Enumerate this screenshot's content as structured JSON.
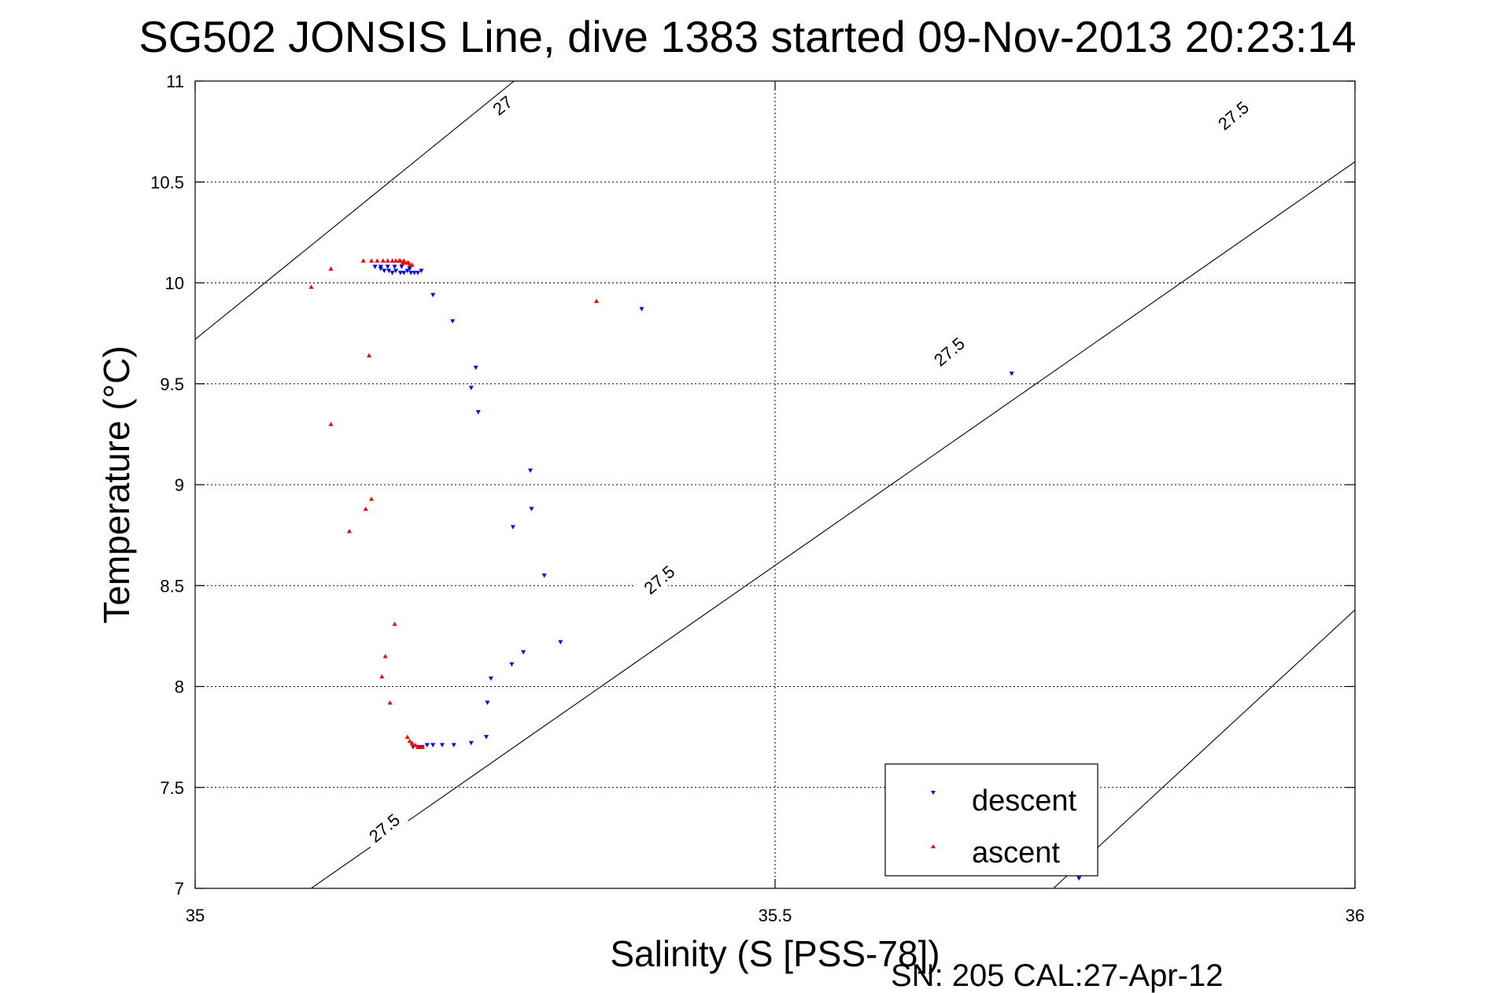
{
  "chart_data": {
    "type": "scatter",
    "title": "SG502 JONSIS Line, dive 1383 started 09-Nov-2013 20:23:14",
    "xlabel": "Salinity (S [PSS-78])",
    "ylabel": "Temperature (°C)",
    "footer": "SN: 205  CAL:27-Apr-12",
    "xlim": [
      35,
      36
    ],
    "ylim": [
      7,
      11
    ],
    "x_ticks": [
      35,
      35.5,
      36
    ],
    "x_tick_labels": [
      "35",
      "35.5",
      "36"
    ],
    "y_ticks": [
      7,
      7.5,
      8,
      8.5,
      9,
      9.5,
      10,
      10.5,
      11
    ],
    "y_tick_labels": [
      "7",
      "7.5",
      "8",
      "8.5",
      "9",
      "9.5",
      "10",
      "10.5",
      "11"
    ],
    "grid": true,
    "legend_position": "bottom-right",
    "density_contours": [
      {
        "level": "27",
        "points": [
          [
            35.0,
            9.72
          ],
          [
            35.275,
            11.0
          ]
        ],
        "labels": [
          {
            "text": "27",
            "x": 35.265,
            "y": 10.88,
            "angle": -38
          }
        ]
      },
      {
        "level": "27.5",
        "points": [
          [
            35.1,
            7.0
          ],
          [
            36.1,
            11.0
          ]
        ],
        "labels": [
          {
            "text": "27.5",
            "x": 35.163,
            "y": 7.3,
            "angle": -40
          },
          {
            "text": "27.5",
            "x": 35.4,
            "y": 8.53,
            "angle": -40
          },
          {
            "text": "27.5",
            "x": 35.65,
            "y": 9.66,
            "angle": -40
          },
          {
            "text": "27.5",
            "x": 35.895,
            "y": 10.83,
            "angle": -40
          }
        ]
      },
      {
        "level": "",
        "points": [
          [
            35.74,
            7.0
          ],
          [
            36.0,
            8.38
          ]
        ],
        "labels": []
      }
    ],
    "series": [
      {
        "name": "descent",
        "color": "#0000ff",
        "marker": "triangle-down",
        "points": [
          [
            35.155,
            10.08
          ],
          [
            35.16,
            10.07
          ],
          [
            35.163,
            10.06
          ],
          [
            35.167,
            10.06
          ],
          [
            35.17,
            10.05
          ],
          [
            35.173,
            10.06
          ],
          [
            35.177,
            10.05
          ],
          [
            35.18,
            10.05
          ],
          [
            35.183,
            10.06
          ],
          [
            35.186,
            10.05
          ],
          [
            35.189,
            10.05
          ],
          [
            35.192,
            10.05
          ],
          [
            35.195,
            10.06
          ],
          [
            35.185,
            10.07
          ],
          [
            35.178,
            10.08
          ],
          [
            35.172,
            10.08
          ],
          [
            35.166,
            10.08
          ],
          [
            35.16,
            10.08
          ],
          [
            35.205,
            9.94
          ],
          [
            35.222,
            9.81
          ],
          [
            35.242,
            9.58
          ],
          [
            35.238,
            9.48
          ],
          [
            35.244,
            9.36
          ],
          [
            35.289,
            9.07
          ],
          [
            35.29,
            8.88
          ],
          [
            35.274,
            8.79
          ],
          [
            35.301,
            8.55
          ],
          [
            35.315,
            8.22
          ],
          [
            35.283,
            8.17
          ],
          [
            35.273,
            8.11
          ],
          [
            35.255,
            8.04
          ],
          [
            35.252,
            7.92
          ],
          [
            35.251,
            7.75
          ],
          [
            35.238,
            7.72
          ],
          [
            35.223,
            7.71
          ],
          [
            35.213,
            7.71
          ],
          [
            35.205,
            7.71
          ],
          [
            35.2,
            7.71
          ],
          [
            35.196,
            7.7
          ],
          [
            35.192,
            7.7
          ],
          [
            35.188,
            7.7
          ],
          [
            35.385,
            9.87
          ],
          [
            35.704,
            9.55
          ],
          [
            35.762,
            7.05
          ]
        ]
      },
      {
        "name": "ascent",
        "color": "#ff0000",
        "marker": "triangle-up",
        "points": [
          [
            35.1,
            9.98
          ],
          [
            35.117,
            10.07
          ],
          [
            35.145,
            10.11
          ],
          [
            35.152,
            10.11
          ],
          [
            35.157,
            10.11
          ],
          [
            35.162,
            10.11
          ],
          [
            35.166,
            10.11
          ],
          [
            35.17,
            10.11
          ],
          [
            35.173,
            10.11
          ],
          [
            35.176,
            10.11
          ],
          [
            35.179,
            10.1
          ],
          [
            35.181,
            10.1
          ],
          [
            35.183,
            10.1
          ],
          [
            35.185,
            10.09
          ],
          [
            35.187,
            10.09
          ],
          [
            35.184,
            10.1
          ],
          [
            35.18,
            10.11
          ],
          [
            35.177,
            10.11
          ],
          [
            35.346,
            9.91
          ],
          [
            35.15,
            9.64
          ],
          [
            35.117,
            9.3
          ],
          [
            35.152,
            8.93
          ],
          [
            35.147,
            8.88
          ],
          [
            35.133,
            8.77
          ],
          [
            35.172,
            8.31
          ],
          [
            35.164,
            8.15
          ],
          [
            35.161,
            8.05
          ],
          [
            35.168,
            7.92
          ],
          [
            35.183,
            7.75
          ],
          [
            35.185,
            7.73
          ],
          [
            35.187,
            7.72
          ],
          [
            35.188,
            7.71
          ],
          [
            35.19,
            7.71
          ],
          [
            35.192,
            7.7
          ],
          [
            35.194,
            7.7
          ],
          [
            35.196,
            7.7
          ]
        ]
      }
    ]
  }
}
